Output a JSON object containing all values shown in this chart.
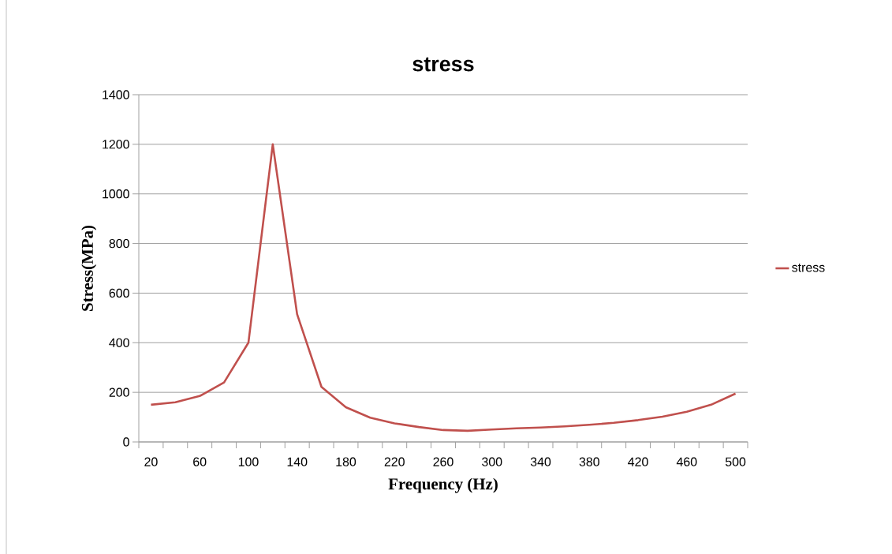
{
  "chart_data": {
    "type": "line",
    "title": "stress",
    "xlabel": "Frequency (Hz)",
    "ylabel": "Stress(MPa)",
    "categories": [
      "20",
      null,
      "60",
      null,
      "100",
      null,
      "140",
      null,
      "180",
      null,
      "220",
      null,
      "260",
      null,
      "300",
      null,
      "340",
      null,
      "380",
      null,
      "420",
      null,
      "460",
      null,
      "500"
    ],
    "series": [
      {
        "name": "stress",
        "color": "#c0504d",
        "values": [
          150,
          160,
          185,
          240,
          400,
          1200,
          515,
          222,
          140,
          98,
          75,
          60,
          48,
          45,
          50,
          55,
          58,
          63,
          69,
          77,
          88,
          102,
          122,
          150,
          195
        ]
      }
    ],
    "ylim": [
      0,
      1400
    ],
    "yticks": [
      0,
      200,
      400,
      600,
      800,
      1000,
      1200,
      1400
    ],
    "grid": "y",
    "legend": "right",
    "marker": "none",
    "line_style": "solid"
  }
}
